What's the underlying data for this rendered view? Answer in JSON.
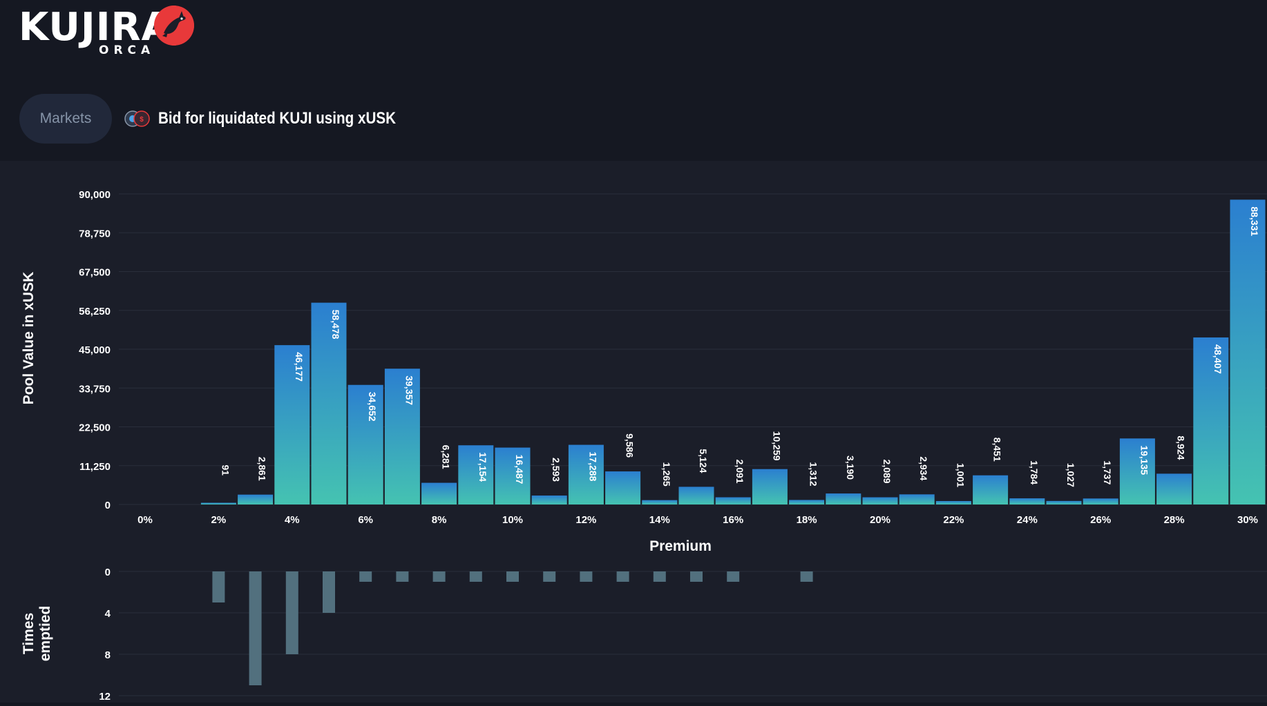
{
  "header": {
    "logo_text": "KUJIRA",
    "logo_subtext": "ORCA",
    "markets_label": "Markets",
    "title": "Bid for liquidated KUJI using xUSK",
    "pair_icon": "kuji-xusk-pair-icon"
  },
  "colors": {
    "background": "#151822",
    "panel": "#1b1e29",
    "bar_top": "#2b7fd0",
    "bar_bottom": "#45c3b1",
    "emptied_bar": "#52707e",
    "brand_red": "#e8393a"
  },
  "chart_data": [
    {
      "type": "bar",
      "xlabel": "Premium",
      "ylabel": "Pool Value in xUSK",
      "ylim": [
        0,
        90000
      ],
      "yticks": [
        "90,000",
        "78,750",
        "67,500",
        "56,250",
        "45,000",
        "33,750",
        "22,500",
        "11,250",
        "0"
      ],
      "xticks": [
        "0%",
        "2%",
        "4%",
        "6%",
        "8%",
        "10%",
        "12%",
        "14%",
        "16%",
        "18%",
        "20%",
        "22%",
        "24%",
        "26%",
        "28%",
        "30%"
      ],
      "x": [
        0,
        1,
        2,
        3,
        4,
        5,
        6,
        7,
        8,
        9,
        10,
        11,
        12,
        13,
        14,
        15,
        16,
        17,
        18,
        19,
        20,
        21,
        22,
        23,
        24,
        25,
        26,
        27,
        28,
        29,
        30
      ],
      "values": [
        0,
        0,
        91,
        2861,
        46177,
        58478,
        34652,
        39357,
        6281,
        17154,
        16487,
        2593,
        17288,
        9586,
        1265,
        5124,
        2091,
        10259,
        1312,
        3190,
        2089,
        2934,
        1001,
        8451,
        1784,
        1027,
        1737,
        19135,
        8924,
        48407,
        88331
      ],
      "value_labels": [
        "",
        "",
        "91",
        "2,861",
        "46,177",
        "58,478",
        "34,652",
        "39,357",
        "6,281",
        "17,154",
        "16,487",
        "2,593",
        "17,288",
        "9,586",
        "1,265",
        "5,124",
        "2,091",
        "10,259",
        "1,312",
        "3,190",
        "2,089",
        "2,934",
        "1,001",
        "8,451",
        "1,784",
        "1,027",
        "1,737",
        "19,135",
        "8,924",
        "48,407",
        "88,331"
      ],
      "grid": true
    },
    {
      "type": "bar",
      "ylabel": "Times emptied",
      "ylim": [
        0,
        12
      ],
      "yticks": [
        "0",
        "4",
        "8",
        "12"
      ],
      "x": [
        0,
        1,
        2,
        3,
        4,
        5,
        6,
        7,
        8,
        9,
        10,
        11,
        12,
        13,
        14,
        15,
        16,
        17,
        18
      ],
      "values": [
        0,
        0,
        3,
        11,
        8,
        4,
        1,
        1,
        1,
        1,
        1,
        1,
        1,
        1,
        1,
        1,
        1,
        0,
        1
      ],
      "grid": true
    }
  ]
}
